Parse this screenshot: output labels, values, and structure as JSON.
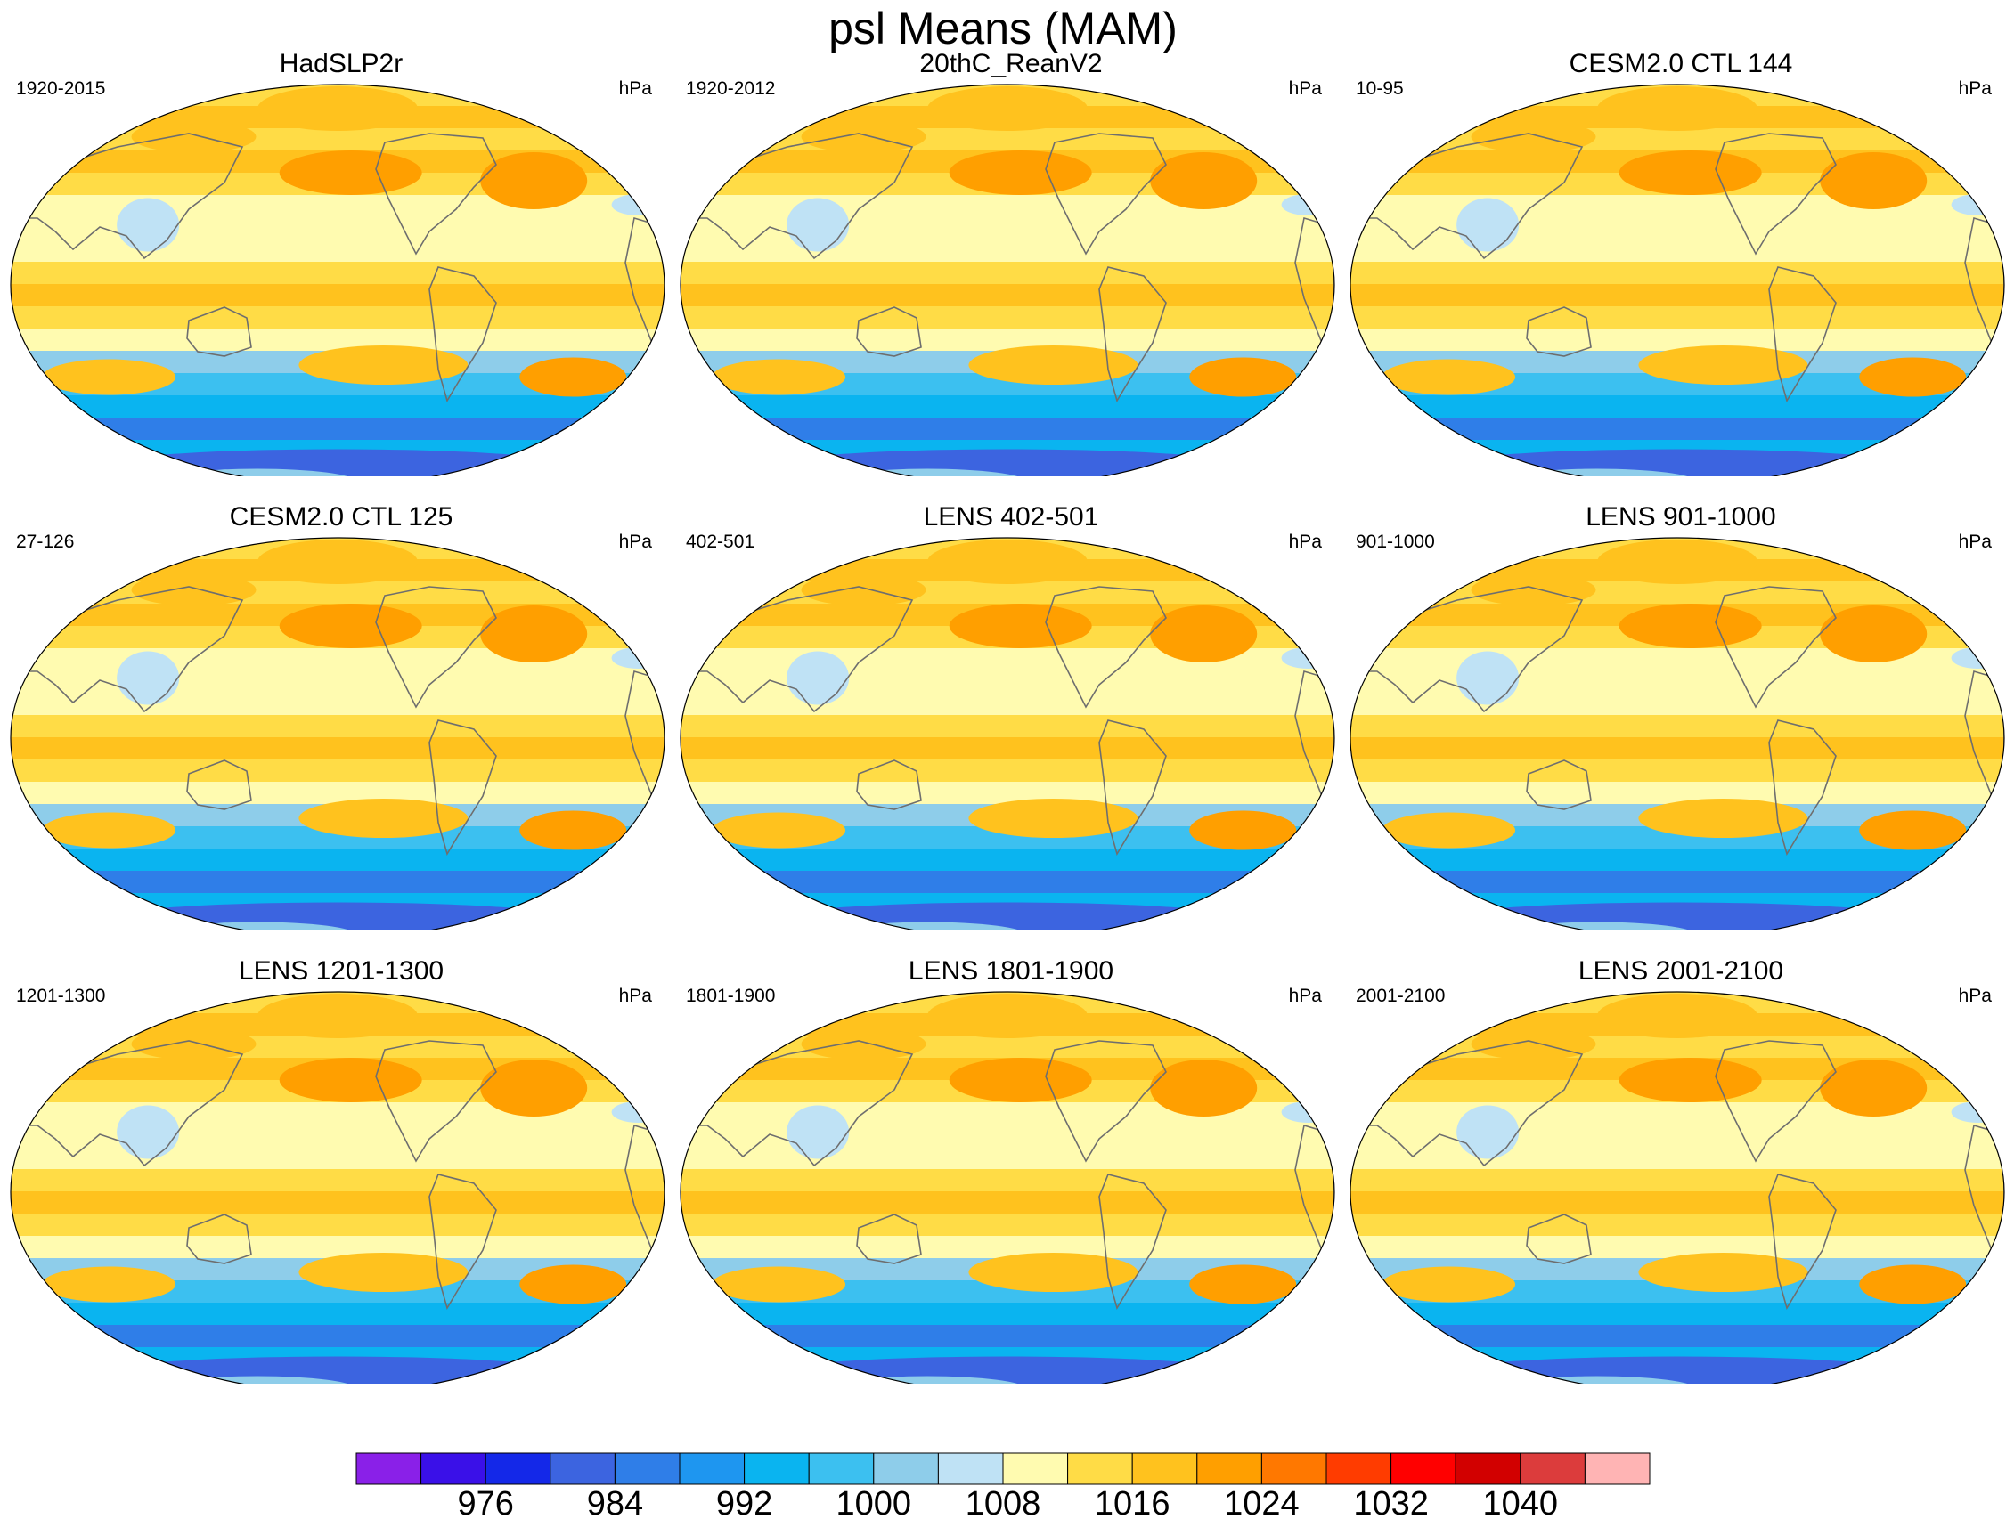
{
  "figure": {
    "title": "psl Means (MAM)"
  },
  "chart_data": {
    "type": "heatmap",
    "variable": "psl",
    "projection": "Robinson, Pacific-centered",
    "panels": [
      {
        "title": "HadSLP2r",
        "left_label": "1920-2015",
        "right_label": "hPa"
      },
      {
        "title": "20thC_ReanV2",
        "left_label": "1920-2012",
        "right_label": "hPa"
      },
      {
        "title": "CESM2.0 CTL 144",
        "left_label": "10-95",
        "right_label": "hPa"
      },
      {
        "title": "CESM2.0 CTL 125",
        "left_label": "27-126",
        "right_label": "hPa"
      },
      {
        "title": "LENS 402-501",
        "left_label": "402-501",
        "right_label": "hPa"
      },
      {
        "title": "LENS 901-1000",
        "left_label": "901-1000",
        "right_label": "hPa"
      },
      {
        "title": "LENS 1201-1300",
        "left_label": "1201-1300",
        "right_label": "hPa"
      },
      {
        "title": "LENS 1801-1900",
        "left_label": "1801-1900",
        "right_label": "hPa"
      },
      {
        "title": "LENS 2001-2100",
        "left_label": "2001-2100",
        "right_label": "hPa"
      }
    ],
    "colorbar": {
      "levels": [
        972,
        976,
        980,
        984,
        988,
        992,
        996,
        1000,
        1004,
        1008,
        1012,
        1016,
        1020,
        1024,
        1028,
        1032,
        1036,
        1040,
        1044
      ],
      "tick_labels": [
        "976",
        "984",
        "992",
        "1000",
        "1008",
        "1016",
        "1024",
        "1032",
        "1040"
      ],
      "colors": [
        "#8a20e8",
        "#3a10e8",
        "#1428e8",
        "#3c64e0",
        "#2f7ee8",
        "#1e96f0",
        "#0ab4f0",
        "#3cc0f0",
        "#8ecdea",
        "#bfe2f5",
        "#fffbb0",
        "#ffdc46",
        "#ffc21e",
        "#ff9f00",
        "#ff7800",
        "#ff3c00",
        "#ff0000",
        "#d20000",
        "#dc3c3c",
        "#ffb4b4"
      ]
    }
  }
}
